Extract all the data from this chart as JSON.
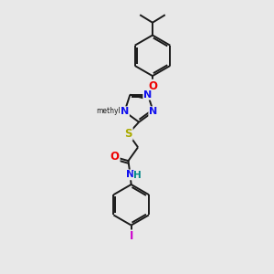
{
  "bg": "#e8e8e8",
  "bond_color": "#1a1a1a",
  "lw": 1.4,
  "colors": {
    "N": "#1010ee",
    "O": "#ee0000",
    "S": "#aaaa00",
    "I": "#cc00cc",
    "NH": "#008888",
    "C": "#1a1a1a"
  },
  "xlim": [
    0,
    10
  ],
  "ylim": [
    0,
    14
  ],
  "figsize": [
    3.0,
    3.0
  ],
  "dpi": 100
}
